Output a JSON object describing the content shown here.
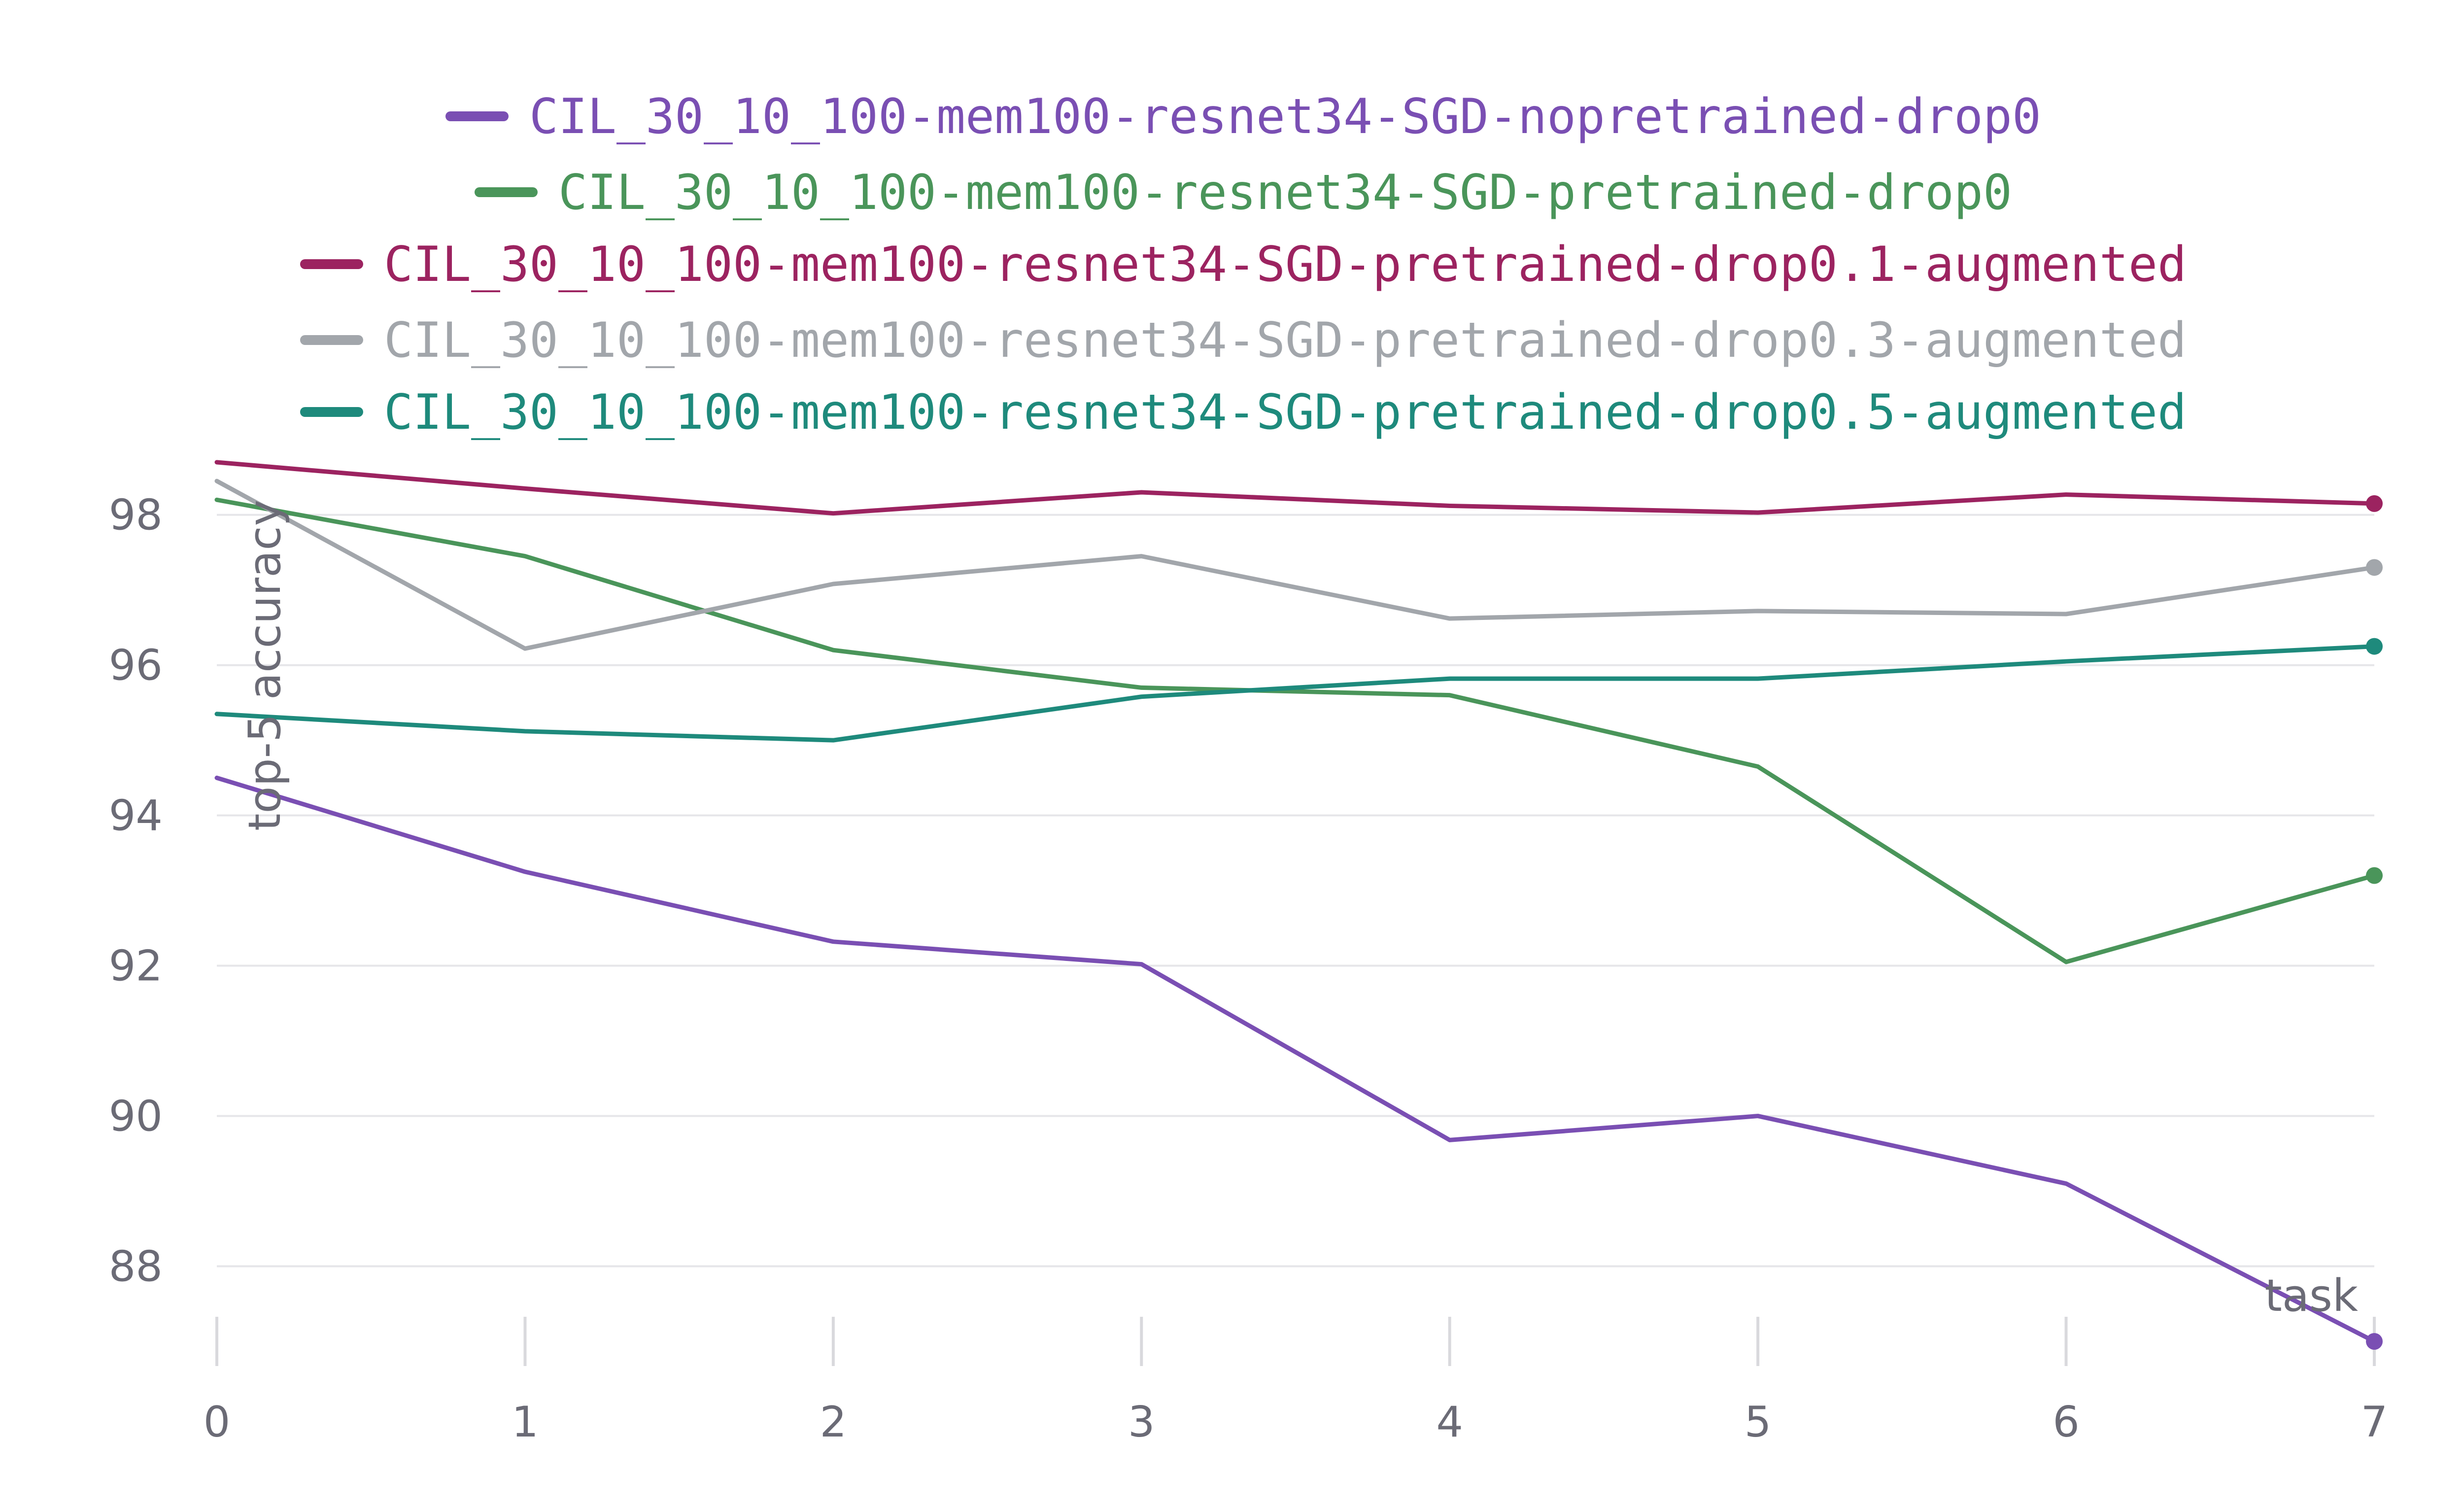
{
  "chart_data": {
    "type": "line",
    "title": "",
    "xlabel": "task",
    "ylabel": "top-5 accuracy",
    "x": [
      0,
      1,
      2,
      3,
      4,
      5,
      6,
      7
    ],
    "xlim": [
      0,
      7
    ],
    "ylim": [
      87,
      98.7
    ],
    "y_ticks": [
      88,
      90,
      92,
      94,
      96,
      98
    ],
    "x_ticks": [
      0,
      1,
      2,
      3,
      4,
      5,
      6,
      7
    ],
    "grid": true,
    "legend_placement": "top-center",
    "series": [
      {
        "name": "CIL_30_10_100-mem100-resnet34-SGD-nopretrained-drop0",
        "color": "#7a4fb3",
        "values": [
          94.5,
          93.25,
          92.32,
          92.02,
          89.68,
          90.0,
          89.1,
          87.0
        ]
      },
      {
        "name": "CIL_30_10_100-mem100-resnet34-SGD-pretrained-drop0",
        "color": "#4a955a",
        "values": [
          98.2,
          97.45,
          96.2,
          95.7,
          95.6,
          94.65,
          92.05,
          93.2
        ]
      },
      {
        "name": "CIL_30_10_100-mem100-resnet34-SGD-pretrained-drop0.1-augmented",
        "color": "#9c2360",
        "values": [
          98.7,
          98.35,
          98.02,
          98.3,
          98.12,
          98.03,
          98.27,
          98.15
        ]
      },
      {
        "name": "CIL_30_10_100-mem100-resnet34-SGD-pretrained-drop0.3-augmented",
        "color": "#a2a6ab",
        "values": [
          98.45,
          96.22,
          97.08,
          97.45,
          96.62,
          96.72,
          96.68,
          97.3
        ]
      },
      {
        "name": "CIL_30_10_100-mem100-resnet34-SGD-pretrained-drop0.5-augmented",
        "color": "#1e8a7c",
        "values": [
          95.35,
          95.12,
          95.0,
          95.58,
          95.82,
          95.82,
          96.05,
          96.25
        ]
      }
    ]
  }
}
